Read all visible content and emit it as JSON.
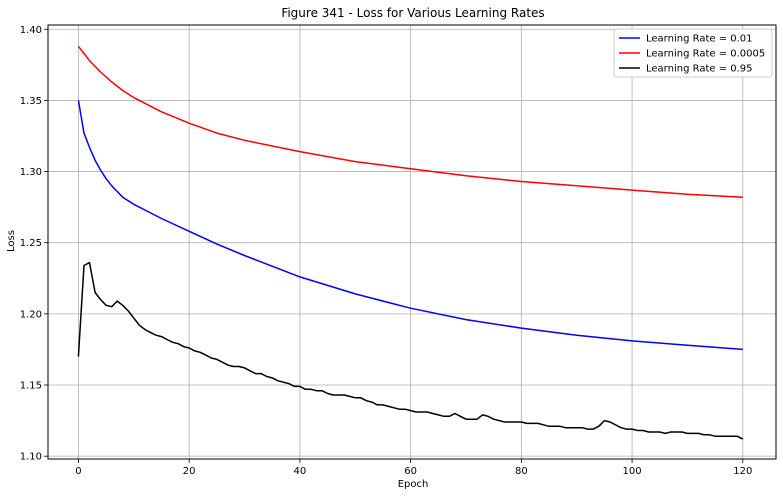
{
  "chart_data": {
    "type": "line",
    "title": "Figure 341 - Loss for Various Learning Rates",
    "xlabel": "Epoch",
    "ylabel": "Loss",
    "xlim": [
      -5.5,
      126
    ],
    "ylim": [
      1.098,
      1.403
    ],
    "xticks": [
      0,
      20,
      40,
      60,
      80,
      100,
      120
    ],
    "yticks": [
      1.1,
      1.15,
      1.2,
      1.25,
      1.3,
      1.35,
      1.4
    ],
    "grid": true,
    "legend_position": "top-right",
    "series": [
      {
        "name": "Learning Rate = 0.01",
        "color": "#0000ff",
        "x": [
          0,
          1,
          2,
          3,
          4,
          5,
          6,
          7,
          8,
          10,
          12,
          15,
          20,
          25,
          30,
          40,
          50,
          60,
          70,
          80,
          90,
          100,
          110,
          120
        ],
        "y": [
          1.35,
          1.327,
          1.317,
          1.308,
          1.301,
          1.295,
          1.29,
          1.286,
          1.282,
          1.277,
          1.273,
          1.267,
          1.258,
          1.249,
          1.241,
          1.226,
          1.214,
          1.204,
          1.196,
          1.19,
          1.185,
          1.181,
          1.178,
          1.175
        ]
      },
      {
        "name": "Learning Rate = 0.0005",
        "color": "#ff0000",
        "x": [
          0,
          1,
          2,
          4,
          6,
          8,
          10,
          12,
          15,
          20,
          25,
          30,
          40,
          50,
          60,
          70,
          80,
          90,
          100,
          110,
          120
        ],
        "y": [
          1.388,
          1.383,
          1.378,
          1.37,
          1.363,
          1.357,
          1.352,
          1.348,
          1.342,
          1.334,
          1.327,
          1.322,
          1.314,
          1.307,
          1.302,
          1.297,
          1.293,
          1.29,
          1.287,
          1.284,
          1.282
        ]
      },
      {
        "name": "Learning Rate = 0.95",
        "color": "#000000",
        "x": [
          0,
          1,
          2,
          3,
          4,
          5,
          6,
          7,
          8,
          9,
          10,
          11,
          12,
          13,
          14,
          15,
          16,
          17,
          18,
          19,
          20,
          21,
          22,
          23,
          24,
          25,
          26,
          27,
          28,
          29,
          30,
          31,
          32,
          33,
          34,
          35,
          36,
          37,
          38,
          39,
          40,
          41,
          42,
          43,
          44,
          45,
          46,
          47,
          48,
          49,
          50,
          51,
          52,
          53,
          54,
          55,
          56,
          57,
          58,
          59,
          60,
          61,
          62,
          63,
          64,
          65,
          66,
          67,
          68,
          69,
          70,
          71,
          72,
          73,
          74,
          75,
          76,
          77,
          78,
          79,
          80,
          81,
          82,
          83,
          84,
          85,
          86,
          87,
          88,
          89,
          90,
          91,
          92,
          93,
          94,
          95,
          96,
          97,
          98,
          99,
          100,
          101,
          102,
          103,
          104,
          105,
          106,
          107,
          108,
          109,
          110,
          111,
          112,
          113,
          114,
          115,
          116,
          117,
          118,
          119,
          120
        ],
        "y": [
          1.17,
          1.234,
          1.236,
          1.215,
          1.21,
          1.206,
          1.205,
          1.209,
          1.206,
          1.202,
          1.197,
          1.192,
          1.189,
          1.187,
          1.185,
          1.184,
          1.182,
          1.18,
          1.179,
          1.177,
          1.176,
          1.174,
          1.173,
          1.171,
          1.169,
          1.168,
          1.166,
          1.164,
          1.163,
          1.163,
          1.162,
          1.16,
          1.158,
          1.158,
          1.156,
          1.155,
          1.153,
          1.152,
          1.151,
          1.149,
          1.149,
          1.147,
          1.147,
          1.146,
          1.146,
          1.144,
          1.143,
          1.143,
          1.143,
          1.142,
          1.141,
          1.141,
          1.139,
          1.138,
          1.136,
          1.136,
          1.135,
          1.134,
          1.133,
          1.133,
          1.132,
          1.131,
          1.131,
          1.131,
          1.13,
          1.129,
          1.128,
          1.128,
          1.13,
          1.128,
          1.126,
          1.126,
          1.126,
          1.129,
          1.128,
          1.126,
          1.125,
          1.124,
          1.124,
          1.124,
          1.124,
          1.123,
          1.123,
          1.123,
          1.122,
          1.121,
          1.121,
          1.121,
          1.12,
          1.12,
          1.12,
          1.12,
          1.119,
          1.119,
          1.121,
          1.125,
          1.124,
          1.122,
          1.12,
          1.119,
          1.119,
          1.118,
          1.118,
          1.117,
          1.117,
          1.117,
          1.116,
          1.117,
          1.117,
          1.117,
          1.116,
          1.116,
          1.116,
          1.115,
          1.115,
          1.114,
          1.114,
          1.114,
          1.114,
          1.114,
          1.112
        ]
      }
    ]
  }
}
